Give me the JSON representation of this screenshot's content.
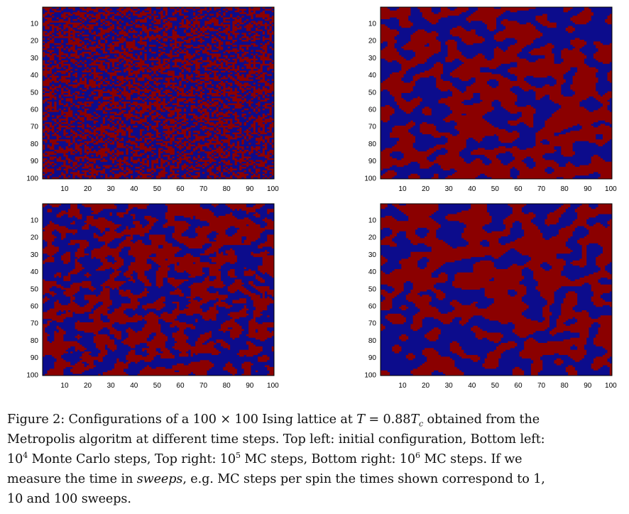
{
  "figure": {
    "panels": [
      {
        "id": "top-left",
        "seed": 11,
        "smooth": 0,
        "bias": 0.0
      },
      {
        "id": "top-right",
        "seed": 23,
        "smooth": 5,
        "bias": 0.0
      },
      {
        "id": "bottom-left",
        "seed": 37,
        "smooth": 2,
        "bias": 0.0
      },
      {
        "id": "bottom-right",
        "seed": 53,
        "smooth": 7,
        "bias": 0.0
      }
    ],
    "grid_size": 100,
    "y_ticks": [
      "10",
      "20",
      "30",
      "40",
      "50",
      "60",
      "70",
      "80",
      "90",
      "100"
    ],
    "x_ticks": [
      "10",
      "20",
      "30",
      "40",
      "50",
      "60",
      "70",
      "80",
      "90",
      "100"
    ],
    "colors": {
      "spin_up": "#8b0000",
      "spin_down": "#0c0c8c"
    }
  },
  "caption": {
    "line1_a": "Figure 2: Configurations of a 100 × 100 Ising lattice at ",
    "line1_T": "T",
    "line1_eq": " = 0.88",
    "line1_Tc": "T",
    "line1_c": "c",
    "line1_b": " obtained from the",
    "line2": "Metropolis algoritm at different time steps. Top left: initial configuration, Bottom left:",
    "line3_a": "10",
    "line3_sup1": "4",
    "line3_b": " Monte Carlo steps, Top right: 10",
    "line3_sup2": "5",
    "line3_c": " MC steps, Bottom right: 10",
    "line3_sup3": "6",
    "line3_d": " MC steps. If we",
    "line4_a": "measure the time in ",
    "line4_em": "sweeps",
    "line4_b": ", e.g. MC steps per spin the times shown correspond to 1,",
    "line5": "10 and 100 sweeps."
  }
}
